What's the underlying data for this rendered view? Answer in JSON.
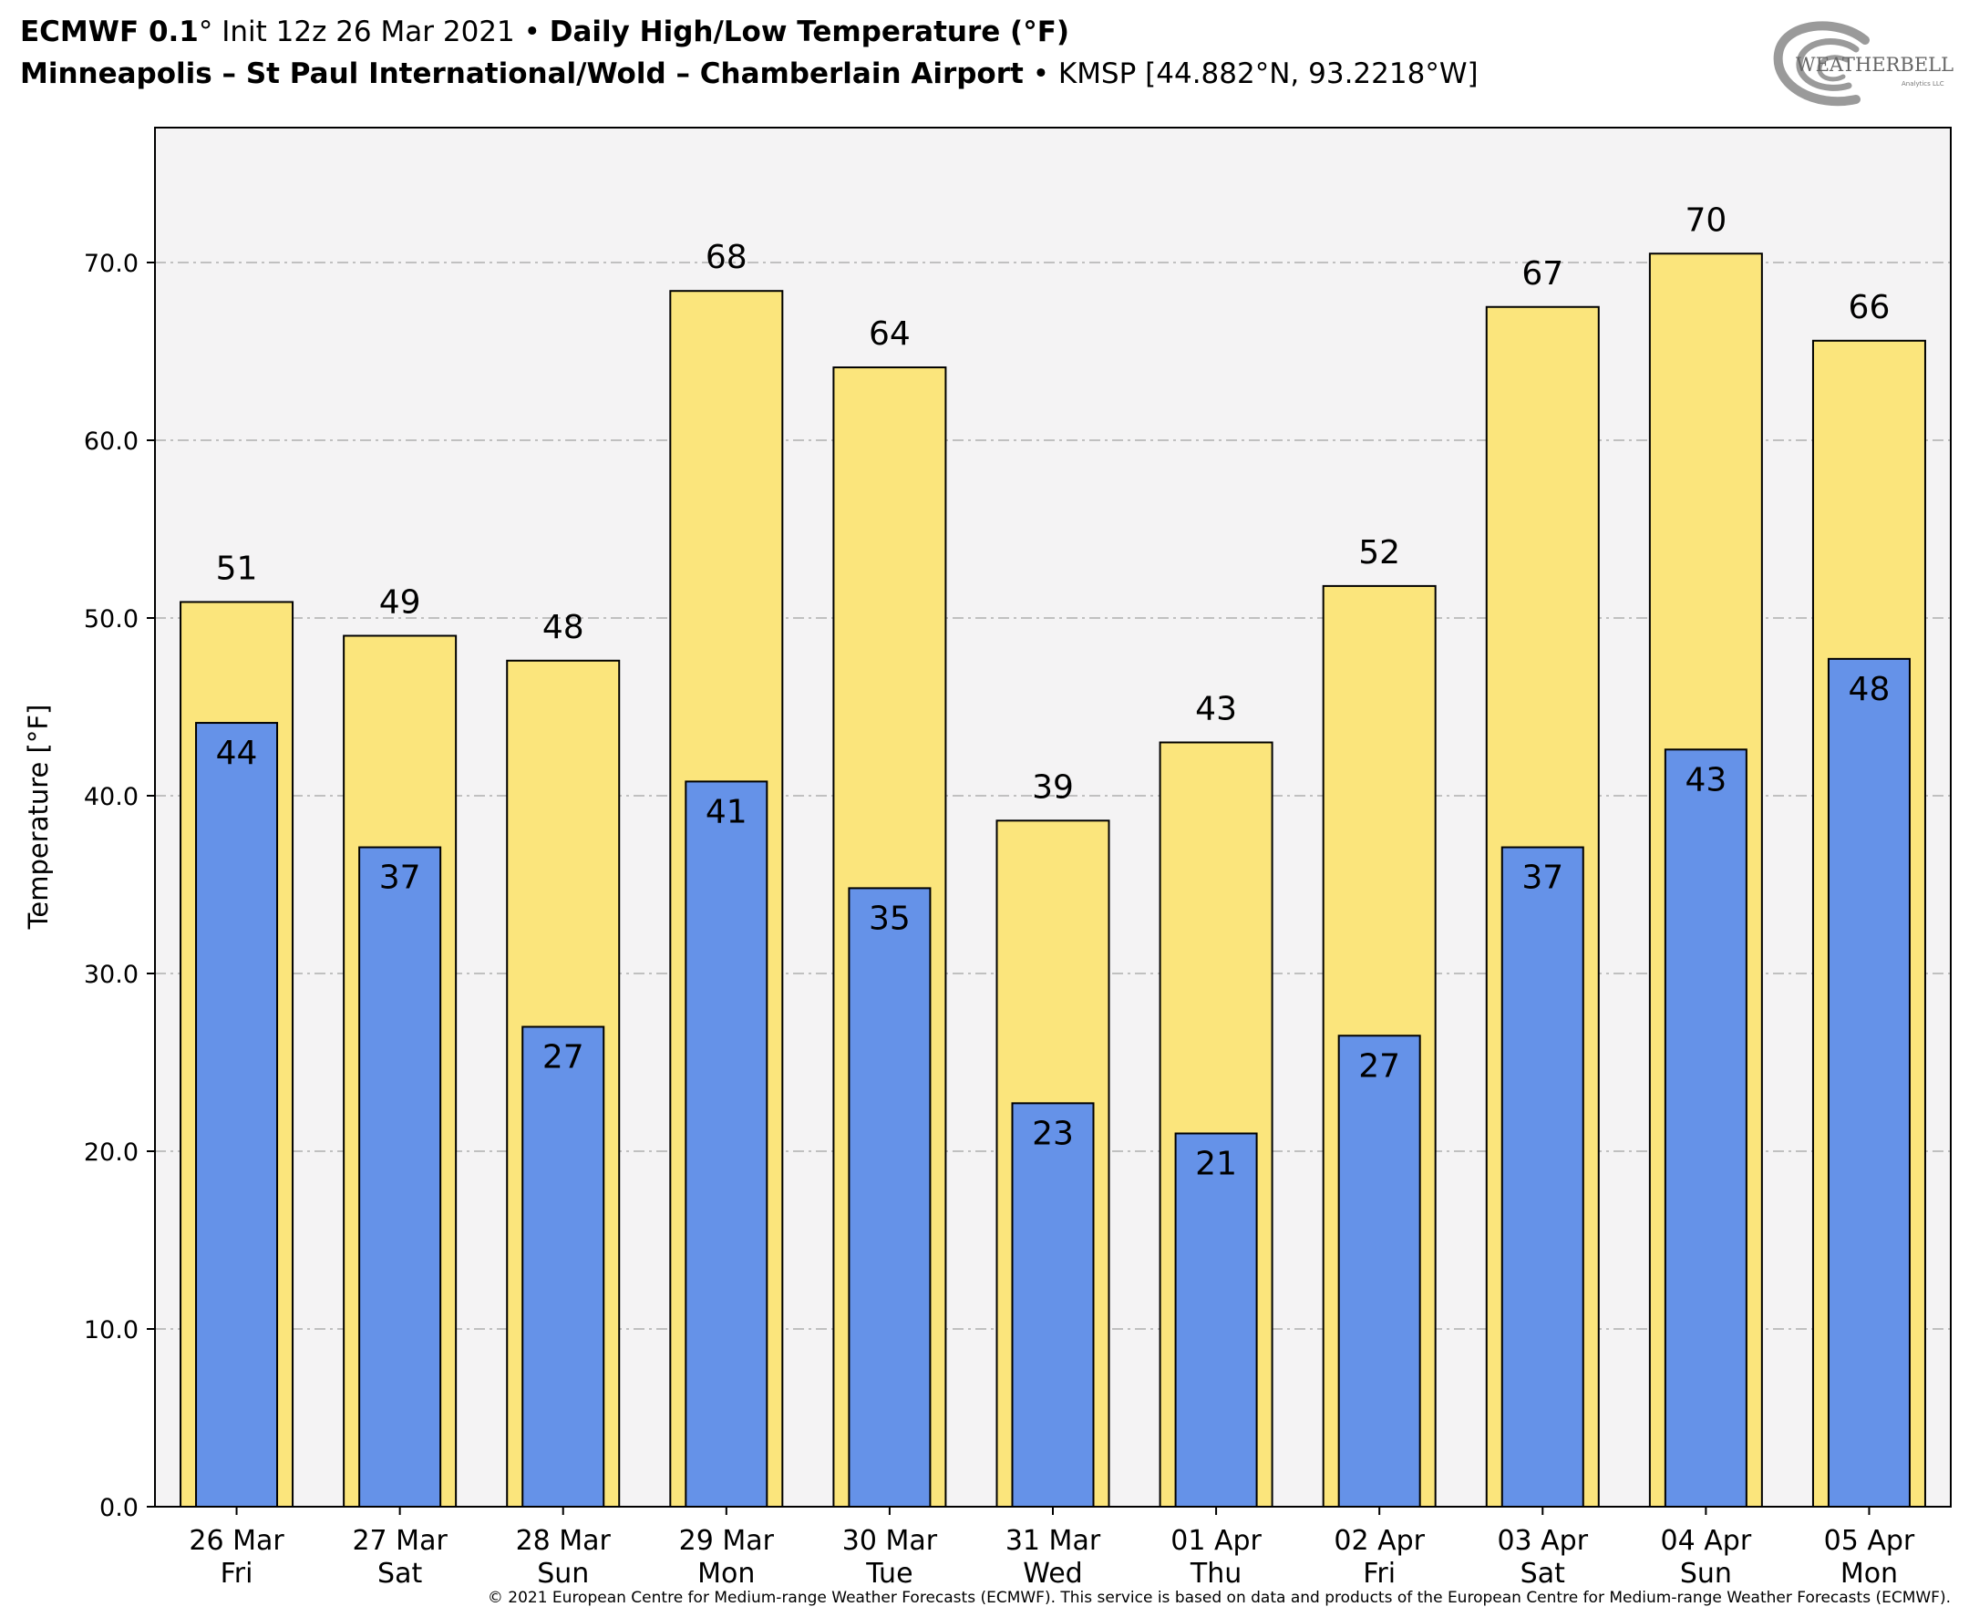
{
  "header": {
    "model_name": "ECMWF 0.1",
    "init_text": "° Init 12z 26 Mar 2021",
    "separator": "•",
    "product": "Daily High/Low Temperature (°F)",
    "location": "Minneapolis – St Paul International/Wold – Chamberlain Airport",
    "station": "KMSP [44.882°N, 93.2218°W]"
  },
  "logo": {
    "text": "WEATHERBELL",
    "subtext": "Analytics LLC"
  },
  "footer": {
    "copyright": "© 2021 European Centre for Medium-range Weather Forecasts (ECMWF). This service is based on data and products of the European Centre for Medium-range Weather Forecasts (ECMWF)."
  },
  "chart_data": {
    "type": "bar",
    "title": "Daily High/Low Temperature (°F)",
    "ylabel": "Temperature [°F]",
    "xlabel": "",
    "ylim": [
      0,
      77
    ],
    "yticks": [
      0,
      10,
      20,
      30,
      40,
      50,
      60,
      70
    ],
    "ytick_labels": [
      "0.0",
      "10.0",
      "20.0",
      "30.0",
      "40.0",
      "50.0",
      "60.0",
      "70.0"
    ],
    "grid": true,
    "categories": [
      "26 Mar",
      "27 Mar",
      "28 Mar",
      "29 Mar",
      "30 Mar",
      "31 Mar",
      "01 Apr",
      "02 Apr",
      "03 Apr",
      "04 Apr",
      "05 Apr"
    ],
    "weekdays": [
      "Fri",
      "Sat",
      "Sun",
      "Mon",
      "Tue",
      "Wed",
      "Thu",
      "Fri",
      "Sat",
      "Sun",
      "Mon"
    ],
    "series": [
      {
        "color": "#fbe57c",
        "values": [
          50.9,
          49.0,
          47.6,
          68.4,
          64.1,
          38.6,
          43.0,
          51.8,
          67.5,
          70.5,
          65.6
        ],
        "labels": [
          "51",
          "49",
          "48",
          "68",
          "64",
          "39",
          "43",
          "52",
          "67",
          "70",
          "66"
        ]
      },
      {
        "color": "#6592e8",
        "values": [
          44.1,
          37.1,
          27.0,
          40.8,
          34.8,
          22.7,
          21.0,
          26.5,
          37.1,
          42.6,
          47.7
        ],
        "labels": [
          "44",
          "37",
          "27",
          "41",
          "35",
          "23",
          "21",
          "27",
          "37",
          "43",
          "48"
        ]
      }
    ]
  }
}
